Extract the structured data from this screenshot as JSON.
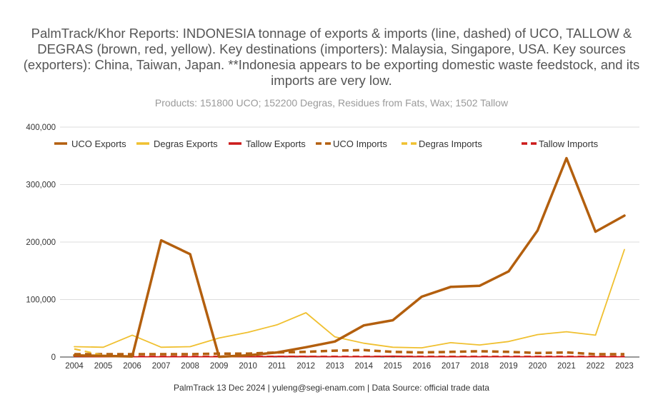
{
  "chart_data": {
    "type": "line",
    "title": "PalmTrack/Khor Reports: INDONESIA  tonnage of exports & imports (line, dashed) of UCO, TALLOW & DEGRAS (brown, red, yellow). Key destinations (importers): Malaysia, Singapore, USA. Key sources (exporters): China, Taiwan, Japan.  **Indonesia appears to be exporting domestic waste feedstock, and its imports are very low.",
    "subtitle": "Products: 151800 UCO; 152200 Degras, Residues from Fats, Wax; 1502 Tallow",
    "xlabel": "",
    "ylabel": "",
    "ylim": [
      0,
      400000
    ],
    "yticks": [
      0,
      100000,
      200000,
      300000,
      400000
    ],
    "ytick_labels": [
      "0",
      "100,000",
      "200,000",
      "300,000",
      "400,000"
    ],
    "grid": true,
    "legend_position": "top",
    "categories": [
      "2004",
      "2005",
      "2006",
      "2007",
      "2008",
      "2009",
      "2010",
      "2011",
      "2012",
      "2013",
      "2014",
      "2015",
      "2016",
      "2017",
      "2018",
      "2019",
      "2020",
      "2021",
      "2022",
      "2023"
    ],
    "series": [
      {
        "name": "UCO Exports",
        "color": "#b35f0e",
        "dashed": false,
        "width": 3.5,
        "values": [
          3000,
          2000,
          1000,
          203000,
          179000,
          500,
          3000,
          8000,
          17000,
          27000,
          55000,
          64000,
          105000,
          122000,
          124000,
          149000,
          220000,
          346000,
          218000,
          246000
        ]
      },
      {
        "name": "Degras Exports",
        "color": "#f0c030",
        "dashed": false,
        "width": 1.8,
        "values": [
          18000,
          17000,
          38000,
          17000,
          18000,
          33000,
          43000,
          56000,
          77000,
          35000,
          24000,
          17000,
          16000,
          25000,
          21000,
          27000,
          39000,
          44000,
          38000,
          187000
        ]
      },
      {
        "name": "Tallow Exports",
        "color": "#cc1a1a",
        "dashed": false,
        "width": 1.8,
        "values": [
          1000,
          500,
          500,
          500,
          500,
          500,
          500,
          1000,
          1000,
          500,
          500,
          1500,
          500,
          500,
          500,
          500,
          500,
          500,
          500,
          500
        ]
      },
      {
        "name": "UCO Imports",
        "color": "#b35f0e",
        "dashed": true,
        "width": 3.5,
        "values": [
          5000,
          5000,
          5000,
          5000,
          5000,
          6000,
          6000,
          8000,
          9000,
          11000,
          12000,
          9000,
          8000,
          9000,
          10000,
          9000,
          7000,
          8000,
          5000,
          5000
        ]
      },
      {
        "name": "Degras Imports",
        "color": "#f0c030",
        "dashed": true,
        "width": 2.2,
        "values": [
          14000,
          3000,
          1000,
          1000,
          1000,
          1000,
          1000,
          1000,
          1000,
          1000,
          1000,
          1000,
          1000,
          1000,
          1000,
          1000,
          1000,
          1000,
          1000,
          1000
        ]
      },
      {
        "name": "Tallow Imports",
        "color": "#cc1a1a",
        "dashed": true,
        "width": 2.2,
        "values": [
          1500,
          1000,
          1000,
          1000,
          1000,
          1000,
          1000,
          1000,
          1000,
          1000,
          1000,
          1000,
          1000,
          1000,
          1000,
          1000,
          1000,
          1000,
          1000,
          1000
        ]
      }
    ]
  },
  "footer": "PalmTrack 13 Dec 2024  | yuleng@segi-enam.com | Data Source: official trade data"
}
